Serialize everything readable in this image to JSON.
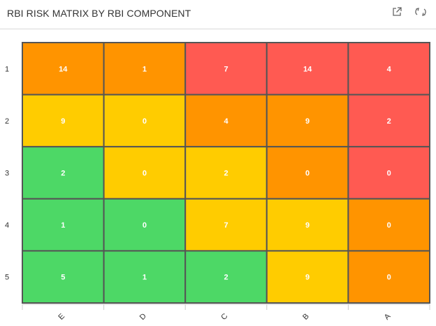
{
  "header": {
    "title": "RBI RISK MATRIX BY RBI COMPONENT",
    "icons": [
      "external-link-icon",
      "refresh-icon"
    ]
  },
  "colors": {
    "high": "#ff5a52",
    "medium_high": "#ff9400",
    "medium": "#ffcc00",
    "low": "#4dd866",
    "grid_border": "#555555"
  },
  "chart_data": {
    "type": "heatmap",
    "title": "RBI RISK MATRIX BY RBI COMPONENT",
    "row_labels": [
      "1",
      "2",
      "3",
      "4",
      "5"
    ],
    "col_labels": [
      "E",
      "D",
      "C",
      "B",
      "A"
    ],
    "values": [
      [
        14,
        1,
        7,
        14,
        4
      ],
      [
        9,
        0,
        4,
        9,
        2
      ],
      [
        2,
        0,
        2,
        0,
        0
      ],
      [
        1,
        0,
        7,
        9,
        0
      ],
      [
        5,
        1,
        2,
        9,
        0
      ]
    ],
    "risk_levels": [
      [
        "medium_high",
        "medium_high",
        "high",
        "high",
        "high"
      ],
      [
        "medium",
        "medium",
        "medium_high",
        "medium_high",
        "high"
      ],
      [
        "low",
        "medium",
        "medium",
        "medium_high",
        "high"
      ],
      [
        "low",
        "low",
        "medium",
        "medium",
        "medium_high"
      ],
      [
        "low",
        "low",
        "low",
        "medium",
        "medium_high"
      ]
    ],
    "xlabel": "",
    "ylabel": ""
  }
}
